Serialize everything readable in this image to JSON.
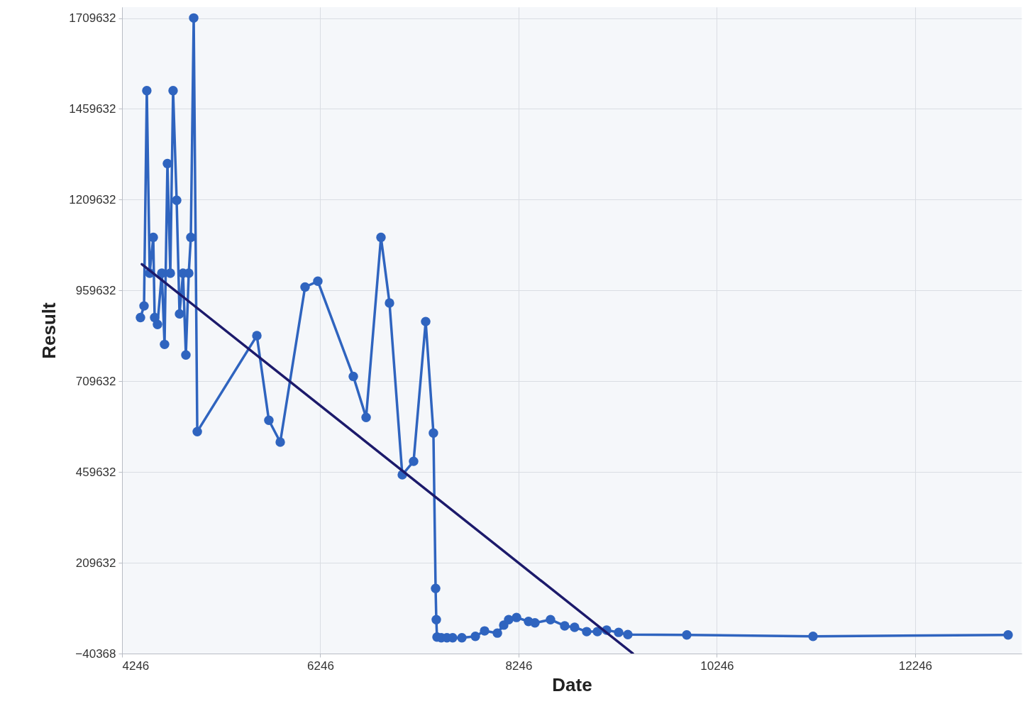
{
  "chart_data": {
    "type": "line",
    "xlabel": "Date",
    "ylabel": "Result",
    "xlim": [
      4246,
      13320
    ],
    "ylim": [
      -40368,
      1740000
    ],
    "xticks": [
      4246,
      6246,
      8246,
      10246,
      12246
    ],
    "yticks": [
      -40368,
      209632,
      459632,
      709632,
      959632,
      1209632,
      1459632,
      1709632
    ],
    "grid": true,
    "series": [
      {
        "color": "#2f64bf",
        "marker": "circle",
        "line_style": "solid",
        "x": [
          4432,
          4468,
          4496,
          4525,
          4561,
          4575,
          4604,
          4647,
          4675,
          4704,
          4733,
          4761,
          4797,
          4826,
          4861,
          4890,
          4919,
          4940,
          4969,
          5005,
          5606,
          5727,
          5842,
          6092,
          6221,
          6579,
          6708,
          6858,
          6944,
          7073,
          7187,
          7309,
          7387,
          7409,
          7416,
          7423,
          7466,
          7523,
          7581,
          7674,
          7810,
          7903,
          8032,
          8096,
          8146,
          8225,
          8346,
          8411,
          8568,
          8711,
          8811,
          8933,
          9041,
          9134,
          9255,
          9348,
          9942,
          11216,
          13184
        ],
        "values": [
          885000,
          917000,
          1510000,
          1007000,
          1106000,
          885000,
          866000,
          1007000,
          811000,
          1309000,
          1007000,
          1510000,
          1208000,
          895000,
          1007000,
          782000,
          1007000,
          1106000,
          1710000,
          571000,
          835000,
          602000,
          542000,
          969000,
          985000,
          723000,
          610000,
          1106000,
          925000,
          452000,
          489000,
          874000,
          567000,
          139000,
          53000,
          5000,
          3000,
          3000,
          3000,
          3000,
          7000,
          22000,
          16000,
          38000,
          53000,
          59000,
          48000,
          44000,
          53000,
          36000,
          32000,
          20000,
          20000,
          24000,
          18000,
          12000,
          11000,
          7000,
          11000
        ]
      },
      {
        "color": "#1c1a6b",
        "marker": "none",
        "line_style": "solid",
        "x": [
          4446,
          9398
        ],
        "values": [
          1032000,
          -40000
        ]
      }
    ]
  }
}
